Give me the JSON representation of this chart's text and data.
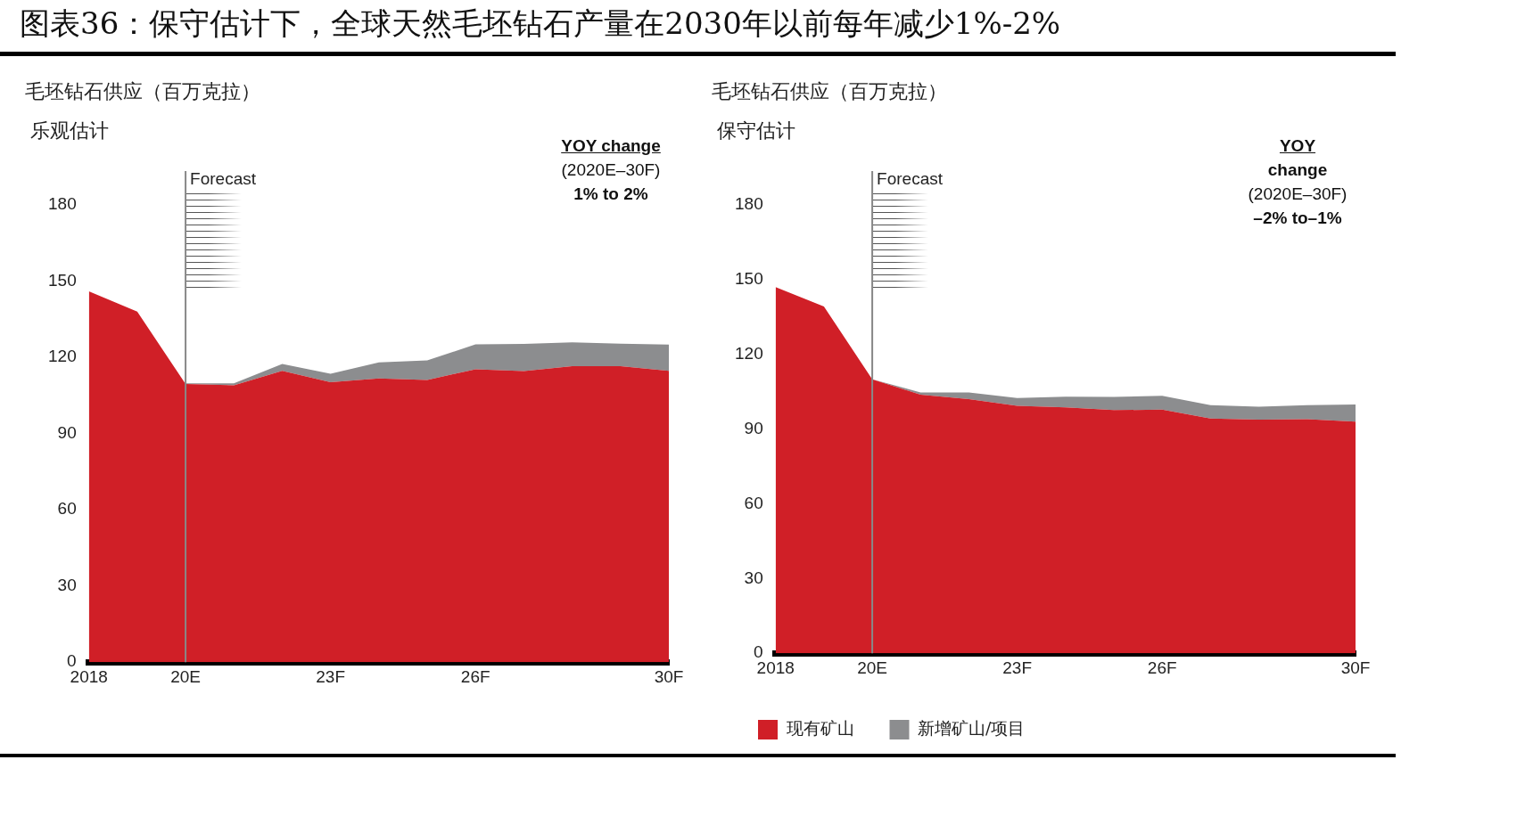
{
  "chart_data": [
    {
      "type": "area",
      "title": "图表36：保守估计下，全球天然毛坯钻石产量在2030年以前每年减少1%-2%",
      "ylabel": "毛坯钻石供应（百万克拉）",
      "subtitle": "乐观估计",
      "annotations": [
        "YOY change",
        "(2020E–30F)",
        "1% to 2%"
      ],
      "categories": [
        "2018",
        null,
        "20E",
        null,
        null,
        "23F",
        null,
        null,
        "26F",
        null,
        null,
        null,
        "30F"
      ],
      "stacked": true,
      "series": [
        {
          "color": "#d01f27",
          "values": [
            146,
            138,
            109.5,
            109,
            114.7,
            110.2,
            111.7,
            111.1,
            115.3,
            114.6,
            116.5,
            116.5,
            114.7
          ]
        },
        {
          "color": "#8c8d8f",
          "values": [
            null,
            null,
            0.3,
            0.8,
            2.7,
            3.3,
            6.3,
            7.7,
            9.8,
            10.7,
            9.4,
            8.9,
            10.3
          ]
        }
      ],
      "ylim": [
        0,
        180
      ],
      "yticks": [
        0,
        30,
        60,
        90,
        120,
        150,
        180
      ],
      "grid": false,
      "legend": false,
      "ref_lines": [
        {
          "axis": "x",
          "value": "20E",
          "label": "Forecast",
          "color": "#888888"
        }
      ]
    },
    {
      "type": "area",
      "ylabel": "毛坯钻石供应（百万克拉）",
      "subtitle": "保守估计",
      "annotations": [
        "YOY",
        "change",
        "(2020E–30F)",
        "–2% to–1%"
      ],
      "categories": [
        "2018",
        null,
        "20E",
        null,
        null,
        "23F",
        null,
        null,
        "26F",
        null,
        null,
        null,
        "30F"
      ],
      "stacked": true,
      "series": [
        {
          "name": "现有矿山",
          "color": "#d01f27",
          "values": [
            147,
            139.2,
            110,
            103.8,
            102,
            99.3,
            98.7,
            97.6,
            97.8,
            94.2,
            93.8,
            94,
            93
          ]
        },
        {
          "name": "新增矿山/项目",
          "color": "#8c8d8f",
          "values": [
            null,
            null,
            0,
            0.9,
            2.7,
            3.2,
            4.3,
            5.3,
            5.6,
            5.4,
            5.2,
            5.6,
            6.9
          ]
        }
      ],
      "ylim": [
        0,
        180
      ],
      "yticks": [
        0,
        30,
        60,
        90,
        120,
        150,
        180
      ],
      "grid": false,
      "legend": "bottom",
      "ref_lines": [
        {
          "axis": "x",
          "value": "20E",
          "label": "Forecast",
          "color": "#888888"
        }
      ]
    }
  ]
}
